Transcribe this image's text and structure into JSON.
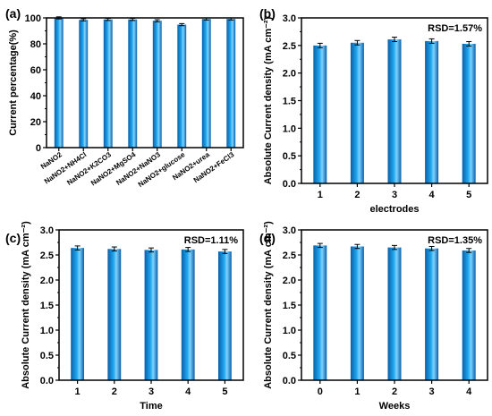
{
  "colors": {
    "bar_dark": "#0a5fa8",
    "bar_mid": "#1fa8f0",
    "bar_light": "#7fd3ff",
    "axis": "#000000"
  },
  "chart_data": [
    {
      "panel": "(a)",
      "type": "bar",
      "categories": [
        "NaNO2",
        "NaNO2+NH4Cl",
        "NaNO2+K2CO3",
        "NaNO2+MgSO4",
        "NaNO2+NaNO3",
        "NaNO2+glucose",
        "NaNO2+urea",
        "NaNO2+FeCl3"
      ],
      "values": [
        100,
        98.5,
        98.8,
        98.8,
        97.8,
        94.8,
        99.2,
        99.2
      ],
      "errors": [
        0.8,
        0.8,
        0.8,
        0.8,
        0.8,
        0.8,
        0.8,
        0.8
      ],
      "xlabel": "",
      "ylabel": "Current percentage(%)",
      "ylim": [
        0,
        100
      ],
      "yticks": [
        0,
        20,
        40,
        60,
        80,
        100
      ],
      "annotation": "",
      "grid": false
    },
    {
      "panel": "(b)",
      "type": "bar",
      "categories": [
        "1",
        "2",
        "3",
        "4",
        "5"
      ],
      "values": [
        2.5,
        2.55,
        2.61,
        2.58,
        2.53
      ],
      "errors": [
        0.04,
        0.04,
        0.04,
        0.04,
        0.04
      ],
      "xlabel": "electrodes",
      "ylabel": "Absolute Current density (mA cm⁻²)",
      "ylim": [
        0,
        3.0
      ],
      "yticks": [
        0.0,
        0.5,
        1.0,
        1.5,
        2.0,
        2.5,
        3.0
      ],
      "annotation": "RSD=1.57%",
      "grid": false
    },
    {
      "panel": "(c)",
      "type": "bar",
      "categories": [
        "1",
        "2",
        "3",
        "4",
        "5"
      ],
      "values": [
        2.64,
        2.62,
        2.6,
        2.61,
        2.57
      ],
      "errors": [
        0.04,
        0.04,
        0.04,
        0.04,
        0.04
      ],
      "xlabel": "Time",
      "ylabel": "Absolute Current density (mA cm⁻²)",
      "ylim": [
        0,
        3.0
      ],
      "yticks": [
        0.0,
        0.5,
        1.0,
        1.5,
        2.0,
        2.5,
        3.0
      ],
      "annotation": "RSD=1.11%",
      "grid": false
    },
    {
      "panel": "(d)",
      "type": "bar",
      "categories": [
        "0",
        "1",
        "2",
        "3",
        "4"
      ],
      "values": [
        2.69,
        2.67,
        2.65,
        2.63,
        2.59
      ],
      "errors": [
        0.04,
        0.04,
        0.04,
        0.04,
        0.04
      ],
      "xlabel": "Weeks",
      "ylabel": "Absolute Current density (mA cm⁻²)",
      "ylim": [
        0,
        3.0
      ],
      "yticks": [
        0.0,
        0.5,
        1.0,
        1.5,
        2.0,
        2.5,
        3.0
      ],
      "annotation": "RSD=1.35%",
      "grid": false
    }
  ]
}
